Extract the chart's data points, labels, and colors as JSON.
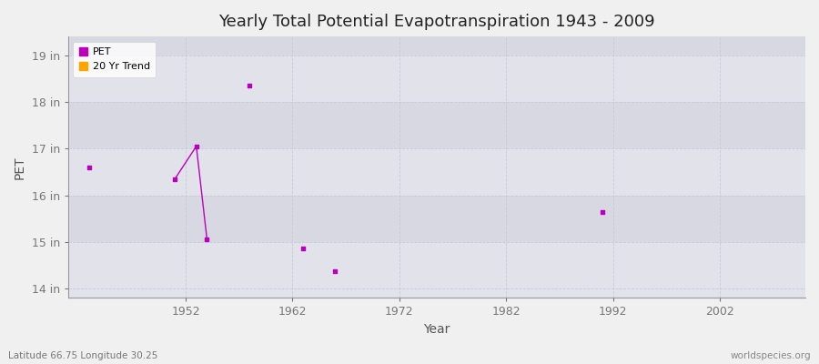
{
  "title": "Yearly Total Potential Evapotranspiration 1943 - 2009",
  "xlabel": "Year",
  "ylabel": "PET",
  "subtitle_left": "Latitude 66.75 Longitude 30.25",
  "subtitle_right": "worldspecies.org",
  "ylim": [
    13.8,
    19.4
  ],
  "xlim": [
    1941,
    2010
  ],
  "yticks": [
    14,
    15,
    16,
    17,
    18,
    19
  ],
  "ytick_labels": [
    "14 in",
    "15 in",
    "16 in",
    "17 in",
    "18 in",
    "19 in"
  ],
  "xticks": [
    1952,
    1962,
    1972,
    1982,
    1992,
    2002
  ],
  "pet_color": "#bb00bb",
  "trend_color": "#ffa500",
  "bg_color": "#f0f0f0",
  "plot_bg_color": "#ececec",
  "band_color_light": "#e8e8e8",
  "band_color_dark": "#d8d8e0",
  "grid_color": "#c8c8d8",
  "pet_points_x": [
    1943,
    1951,
    1953,
    1954,
    1958,
    1963,
    1966,
    1991
  ],
  "pet_points_y": [
    16.6,
    16.35,
    17.05,
    15.05,
    18.35,
    14.87,
    14.37,
    15.65
  ],
  "trend_line_x": [
    1951,
    1953,
    1954
  ],
  "trend_line_y": [
    16.35,
    17.05,
    15.05
  ],
  "band_ranges": [
    [
      14,
      15
    ],
    [
      16,
      17
    ],
    [
      18,
      19
    ]
  ],
  "band_ranges_light": [
    [
      15,
      16
    ],
    [
      17,
      18
    ],
    [
      19,
      19.4
    ]
  ]
}
